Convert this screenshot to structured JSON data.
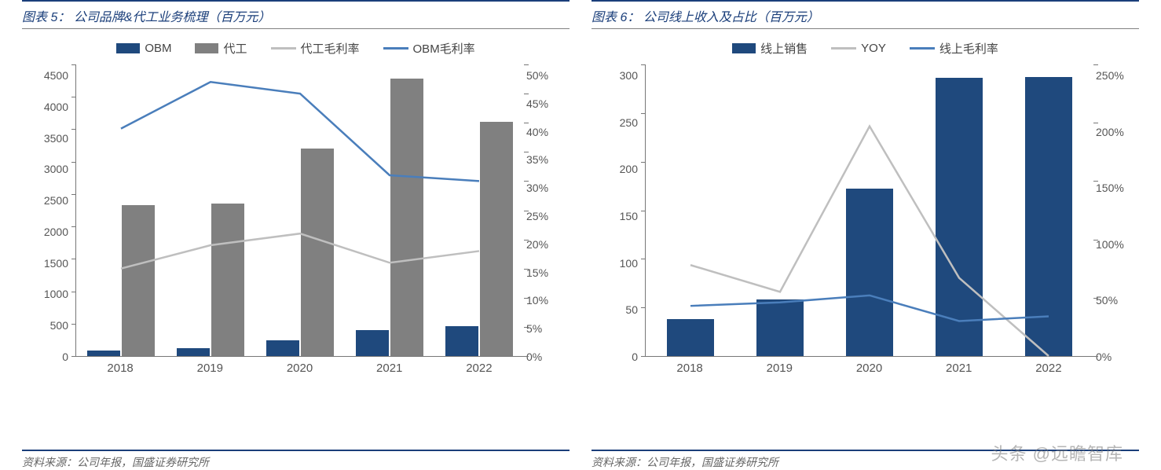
{
  "colors": {
    "navy": "#1f497d",
    "gray": "#808080",
    "lightgray": "#bfbfbf",
    "blueLine": "#4a7ebb",
    "axis": "#777777",
    "ruleNavy": "#1a3e7a"
  },
  "watermark": "头条 @远瞻智库",
  "left": {
    "titlePrefix": "图表 5：",
    "title": "公司品牌&代工业务梳理（百万元）",
    "source": "资料来源：公司年报，国盛证券研究所",
    "categories": [
      "2018",
      "2019",
      "2020",
      "2021",
      "2022"
    ],
    "yLeft": {
      "min": 0,
      "max": 4500,
      "step": 500
    },
    "yRight": {
      "min": 0,
      "max": 50,
      "step": 5,
      "suffix": "%"
    },
    "series": {
      "obm": {
        "label": "OBM",
        "type": "bar",
        "color": "#1f497d",
        "values": [
          90,
          120,
          240,
          400,
          460
        ]
      },
      "oem": {
        "label": "代工",
        "type": "bar",
        "color": "#808080",
        "values": [
          2330,
          2350,
          3200,
          4280,
          3610
        ]
      },
      "oemGM": {
        "label": "代工毛利率",
        "type": "line",
        "color": "#bfbfbf",
        "axis": "right",
        "values": [
          15,
          19,
          21,
          16,
          18
        ]
      },
      "obmGM": {
        "label": "OBM毛利率",
        "type": "line",
        "color": "#4a7ebb",
        "axis": "right",
        "values": [
          39,
          47,
          45,
          31,
          30
        ]
      }
    },
    "legendOrder": [
      "obm",
      "oem",
      "oemGM",
      "obmGM"
    ]
  },
  "right": {
    "titlePrefix": "图表 6：",
    "title": "公司线上收入及占比（百万元）",
    "source": "资料来源：公司年报，国盛证券研究所",
    "categories": [
      "2018",
      "2019",
      "2020",
      "2021",
      "2022"
    ],
    "yLeft": {
      "min": 0,
      "max": 300,
      "step": 50
    },
    "yRight": {
      "min": 0,
      "max": 250,
      "step": 50,
      "suffix": "%"
    },
    "series": {
      "online": {
        "label": "线上销售",
        "type": "bar",
        "color": "#1f497d",
        "values": [
          38,
          58,
          172,
          286,
          287
        ]
      },
      "yoy": {
        "label": "YOY",
        "type": "line",
        "color": "#bfbfbf",
        "axis": "right",
        "values": [
          78,
          55,
          197,
          67,
          0
        ]
      },
      "onlineGM": {
        "label": "线上毛利率",
        "type": "line",
        "color": "#4a7ebb",
        "axis": "right",
        "values": [
          43,
          46,
          52,
          30,
          34
        ]
      }
    },
    "legendOrder": [
      "online",
      "yoy",
      "onlineGM"
    ]
  }
}
